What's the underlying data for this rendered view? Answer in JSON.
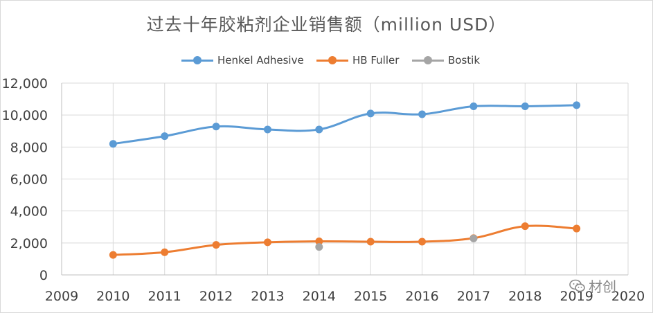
{
  "title": "过去十年胶粘剂企业销售额（million USD）",
  "watermark": "材创",
  "chart_data": {
    "type": "line",
    "title": "过去十年胶粘剂企业销售额（million USD）",
    "xlim": [
      2009,
      2020
    ],
    "ylim": [
      0,
      12000
    ],
    "x_ticks": [
      "2009",
      "2010",
      "2011",
      "2012",
      "2013",
      "2014",
      "2015",
      "2016",
      "2017",
      "2018",
      "2019",
      "2020"
    ],
    "y_ticks": [
      "0",
      "2,000",
      "4,000",
      "6,000",
      "8,000",
      "10,000",
      "12,000"
    ],
    "grid": true,
    "legend_position": "top",
    "series": [
      {
        "name": "Henkel Adhesive",
        "color": "#5b9bd5",
        "smooth": true,
        "points": [
          {
            "x": 2010,
            "y": 8200
          },
          {
            "x": 2011,
            "y": 8680
          },
          {
            "x": 2012,
            "y": 9280
          },
          {
            "x": 2013,
            "y": 9100
          },
          {
            "x": 2014,
            "y": 9100
          },
          {
            "x": 2015,
            "y": 10100
          },
          {
            "x": 2016,
            "y": 10050
          },
          {
            "x": 2017,
            "y": 10550
          },
          {
            "x": 2018,
            "y": 10550
          },
          {
            "x": 2019,
            "y": 10620
          }
        ]
      },
      {
        "name": "HB Fuller",
        "color": "#ed7d31",
        "smooth": true,
        "points": [
          {
            "x": 2010,
            "y": 1250
          },
          {
            "x": 2011,
            "y": 1420
          },
          {
            "x": 2012,
            "y": 1880
          },
          {
            "x": 2013,
            "y": 2040
          },
          {
            "x": 2014,
            "y": 2100
          },
          {
            "x": 2015,
            "y": 2080
          },
          {
            "x": 2016,
            "y": 2080
          },
          {
            "x": 2017,
            "y": 2300
          },
          {
            "x": 2018,
            "y": 3050
          },
          {
            "x": 2019,
            "y": 2900
          }
        ]
      },
      {
        "name": "Bostik",
        "color": "#a5a5a5",
        "smooth": false,
        "points": [
          {
            "x": 2014,
            "y": 1750
          },
          {
            "x": 2017,
            "y": 2280
          }
        ]
      }
    ]
  }
}
